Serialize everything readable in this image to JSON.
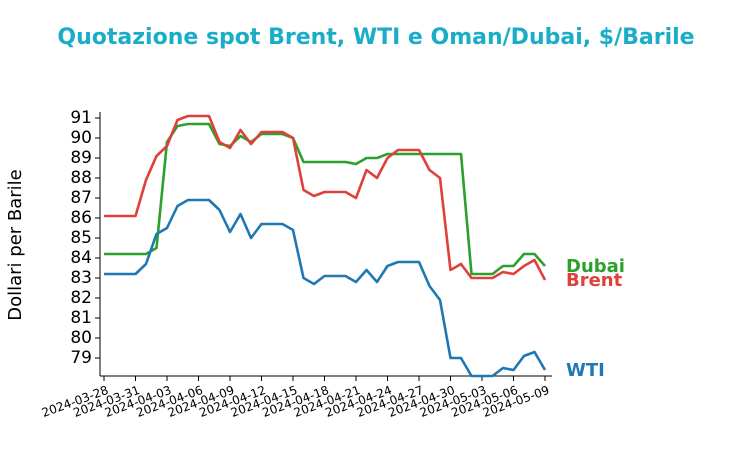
{
  "chart_data": {
    "type": "line",
    "title": "Quotazione spot Brent, WTI e Oman/Dubai, $/Barile",
    "y_label": "Dollari per Barile",
    "x": [
      "2024-03-28",
      "2024-03-29",
      "2024-03-30",
      "2024-03-31",
      "2024-04-01",
      "2024-04-02",
      "2024-04-03",
      "2024-04-04",
      "2024-04-05",
      "2024-04-06",
      "2024-04-07",
      "2024-04-08",
      "2024-04-09",
      "2024-04-10",
      "2024-04-11",
      "2024-04-12",
      "2024-04-13",
      "2024-04-14",
      "2024-04-15",
      "2024-04-16",
      "2024-04-17",
      "2024-04-18",
      "2024-04-19",
      "2024-04-20",
      "2024-04-21",
      "2024-04-22",
      "2024-04-23",
      "2024-04-24",
      "2024-04-25",
      "2024-04-26",
      "2024-04-27",
      "2024-04-28",
      "2024-04-29",
      "2024-04-30",
      "2024-05-01",
      "2024-05-02",
      "2024-05-03",
      "2024-05-04",
      "2024-05-05",
      "2024-05-06",
      "2024-05-07",
      "2024-05-08",
      "2024-05-09"
    ],
    "series": [
      {
        "name": "Dubai",
        "color": "#2ca02c",
        "values": [
          84.2,
          84.2,
          84.2,
          84.2,
          84.2,
          84.5,
          89.8,
          90.6,
          90.7,
          90.7,
          90.7,
          89.7,
          89.6,
          90.1,
          89.8,
          90.2,
          90.2,
          90.2,
          90.0,
          88.8,
          88.8,
          88.8,
          88.8,
          88.8,
          88.7,
          89.0,
          89.0,
          89.2,
          89.2,
          89.2,
          89.2,
          89.2,
          89.2,
          89.2,
          89.2,
          83.2,
          83.2,
          83.2,
          83.6,
          83.6,
          84.2,
          84.2,
          83.6
        ]
      },
      {
        "name": "Brent",
        "color": "#e0403a",
        "values": [
          86.1,
          86.1,
          86.1,
          86.1,
          87.9,
          89.1,
          89.6,
          90.9,
          91.1,
          91.1,
          91.1,
          89.8,
          89.5,
          90.4,
          89.7,
          90.3,
          90.3,
          90.3,
          90.0,
          87.4,
          87.1,
          87.3,
          87.3,
          87.3,
          87.0,
          88.4,
          88.0,
          89.0,
          89.4,
          89.4,
          89.4,
          88.4,
          88.0,
          83.4,
          83.7,
          83.0,
          83.0,
          83.0,
          83.3,
          83.2,
          83.6,
          83.9,
          82.9
        ]
      },
      {
        "name": "WTI",
        "color": "#1f77b4",
        "values": [
          83.2,
          83.2,
          83.2,
          83.2,
          83.7,
          85.2,
          85.5,
          86.6,
          86.9,
          86.9,
          86.9,
          86.4,
          85.3,
          86.2,
          85.0,
          85.7,
          85.7,
          85.7,
          85.4,
          83.0,
          82.7,
          83.1,
          83.1,
          83.1,
          82.8,
          83.4,
          82.8,
          83.6,
          83.8,
          83.8,
          83.8,
          82.6,
          81.9,
          79.0,
          79.0,
          78.1,
          78.1,
          78.1,
          78.5,
          78.4,
          79.1,
          79.3,
          78.4
        ]
      }
    ],
    "xlim": [
      "2024-03-28",
      "2024-05-09"
    ],
    "xticks": [
      "2024-03-28",
      "2024-03-31",
      "2024-04-03",
      "2024-04-06",
      "2024-04-09",
      "2024-04-12",
      "2024-04-15",
      "2024-04-18",
      "2024-04-21",
      "2024-04-24",
      "2024-04-27",
      "2024-04-30",
      "2024-05-03",
      "2024-05-06",
      "2024-05-09"
    ],
    "ylim": [
      78.1,
      91.3
    ],
    "yticks": [
      79,
      80,
      81,
      82,
      83,
      84,
      85,
      86,
      87,
      88,
      89,
      90,
      91
    ]
  }
}
